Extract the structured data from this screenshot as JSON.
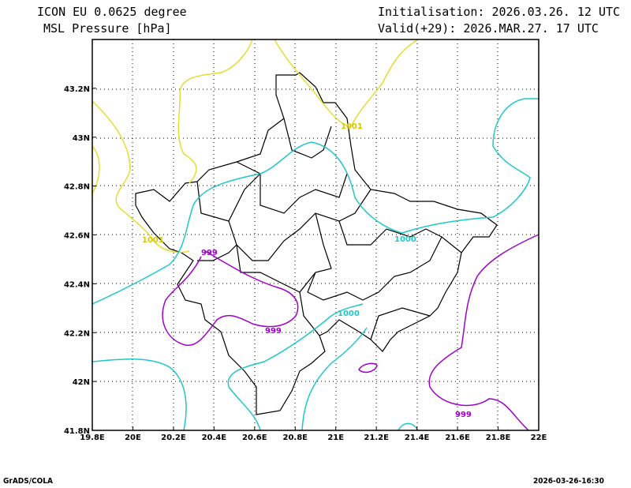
{
  "header": {
    "model": "ICON EU 0.0625 degree",
    "variable": "MSL Pressure [hPa]",
    "init": "Initialisation: 2026.03.26. 12 UTC",
    "valid": "Valid(+29): 2026.MAR.27. 17 UTC"
  },
  "footer": {
    "left": "GrADS/COLA",
    "right": "2026-03-26-16:30"
  },
  "axes": {
    "x_ticks": [
      "19.8E",
      "20E",
      "20.2E",
      "20.4E",
      "20.6E",
      "20.8E",
      "21E",
      "21.2E",
      "21.4E",
      "21.6E",
      "21.8E",
      "22E"
    ],
    "y_ticks": [
      "41.8N",
      "42N",
      "42.2N",
      "42.4N",
      "42.6N",
      "42.8N",
      "43N",
      "43.2N"
    ],
    "lon_range": [
      19.8,
      22.0
    ],
    "lat_range": [
      41.8,
      43.4
    ]
  },
  "contour_labels": {
    "yellow_a": "1001",
    "yellow_b": "1001",
    "cyan_a": "1000",
    "cyan_b": "1000",
    "purple_a": "999",
    "purple_b": "999",
    "purple_c": "999"
  },
  "colors": {
    "c1001": "#e6dc32",
    "c1000": "#1ec8c8",
    "c999": "#a000c8"
  }
}
